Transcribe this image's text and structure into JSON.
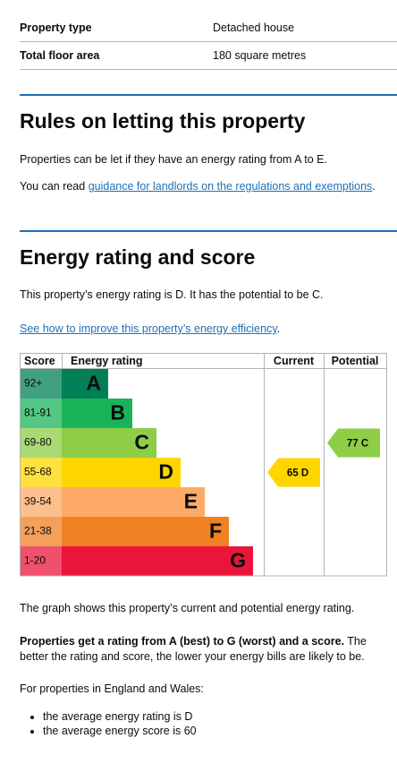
{
  "summary": [
    {
      "label": "Property type",
      "value": "Detached house"
    },
    {
      "label": "Total floor area",
      "value": "180 square metres"
    }
  ],
  "letting": {
    "heading": "Rules on letting this property",
    "paragraph": "Properties can be let if they have an energy rating from A to E.",
    "read_prefix": "You can read",
    "read_link": "guidance for landlords on the regulations and exemptions",
    "read_suffix": "."
  },
  "energy": {
    "heading": "Energy rating and score",
    "paragraph": "This property’s energy rating is D. It has the potential to be C.",
    "improve_link": "See how to improve this property’s energy efficiency",
    "improve_suffix": "."
  },
  "rating_chart": {
    "headers": [
      "Score",
      "Energy rating",
      "Current",
      "Potential"
    ],
    "bands": [
      {
        "score": "92+",
        "letter": "A",
        "color": "#008054"
      },
      {
        "score": "81-91",
        "letter": "B",
        "color": "#19b459"
      },
      {
        "score": "69-80",
        "letter": "C",
        "color": "#8dce46"
      },
      {
        "score": "55-68",
        "letter": "D",
        "color": "#ffd500"
      },
      {
        "score": "39-54",
        "letter": "E",
        "color": "#fcaa65"
      },
      {
        "score": "21-38",
        "letter": "F",
        "color": "#ef8023"
      },
      {
        "score": "1-20",
        "letter": "G",
        "color": "#e9153b"
      }
    ],
    "current": {
      "score": 65,
      "rating": "D"
    },
    "potential": {
      "score": 77,
      "rating": "C"
    }
  },
  "footer": {
    "graph_note": "The graph shows this property’s current and potential energy rating.",
    "rating_bold": "Properties get a rating from A (best) to G (worst) and a score.",
    "rating_rest": "The better the rating and score, the lower your energy bills are likely to be.",
    "averages_intro": "For properties in England and Wales:",
    "bullets": [
      "the average energy rating is D",
      "the average energy score is 60"
    ]
  }
}
